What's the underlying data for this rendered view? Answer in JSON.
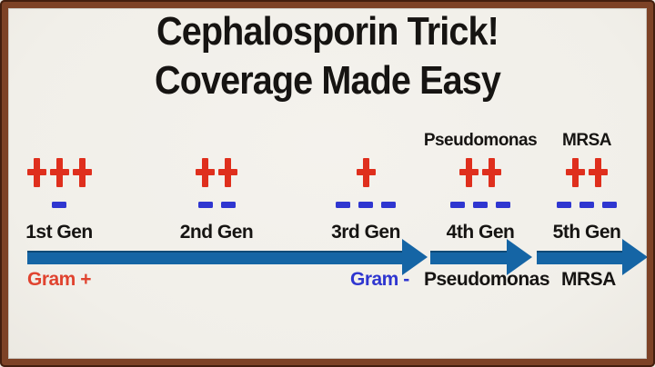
{
  "title": {
    "line1": "Cephalosporin Trick!",
    "line2": "Coverage Made Easy"
  },
  "generations": [
    {
      "label": "1st Gen",
      "top_label": "",
      "gram_positive": "+++",
      "gram_negative": "-"
    },
    {
      "label": "2nd Gen",
      "top_label": "",
      "gram_positive": "++",
      "gram_negative": "--"
    },
    {
      "label": "3rd Gen",
      "top_label": "",
      "gram_positive": "+",
      "gram_negative": "---"
    },
    {
      "label": "4th Gen",
      "top_label": "Pseudomonas",
      "gram_positive": "++",
      "gram_negative": "---"
    },
    {
      "label": "5th Gen",
      "top_label": "MRSA",
      "gram_positive": "++",
      "gram_negative": "---"
    }
  ],
  "timeline_labels": [
    {
      "text": "Gram +",
      "color": "red"
    },
    {
      "text": "Gram -",
      "color": "blue"
    },
    {
      "text": "Pseudomonas",
      "color": "black"
    },
    {
      "text": "MRSA",
      "color": "black"
    }
  ],
  "colors": {
    "plus_red": "#df2f1d",
    "dash_blue": "#2f36d0",
    "arrow_blue": "#1565a5",
    "arrow_blue_dark": "#0d4a77",
    "border_brown": "#7d4226",
    "border_dark": "#431f0e",
    "background": "#f1efe9",
    "text_black": "#161412",
    "label_red": "#e0432f"
  }
}
